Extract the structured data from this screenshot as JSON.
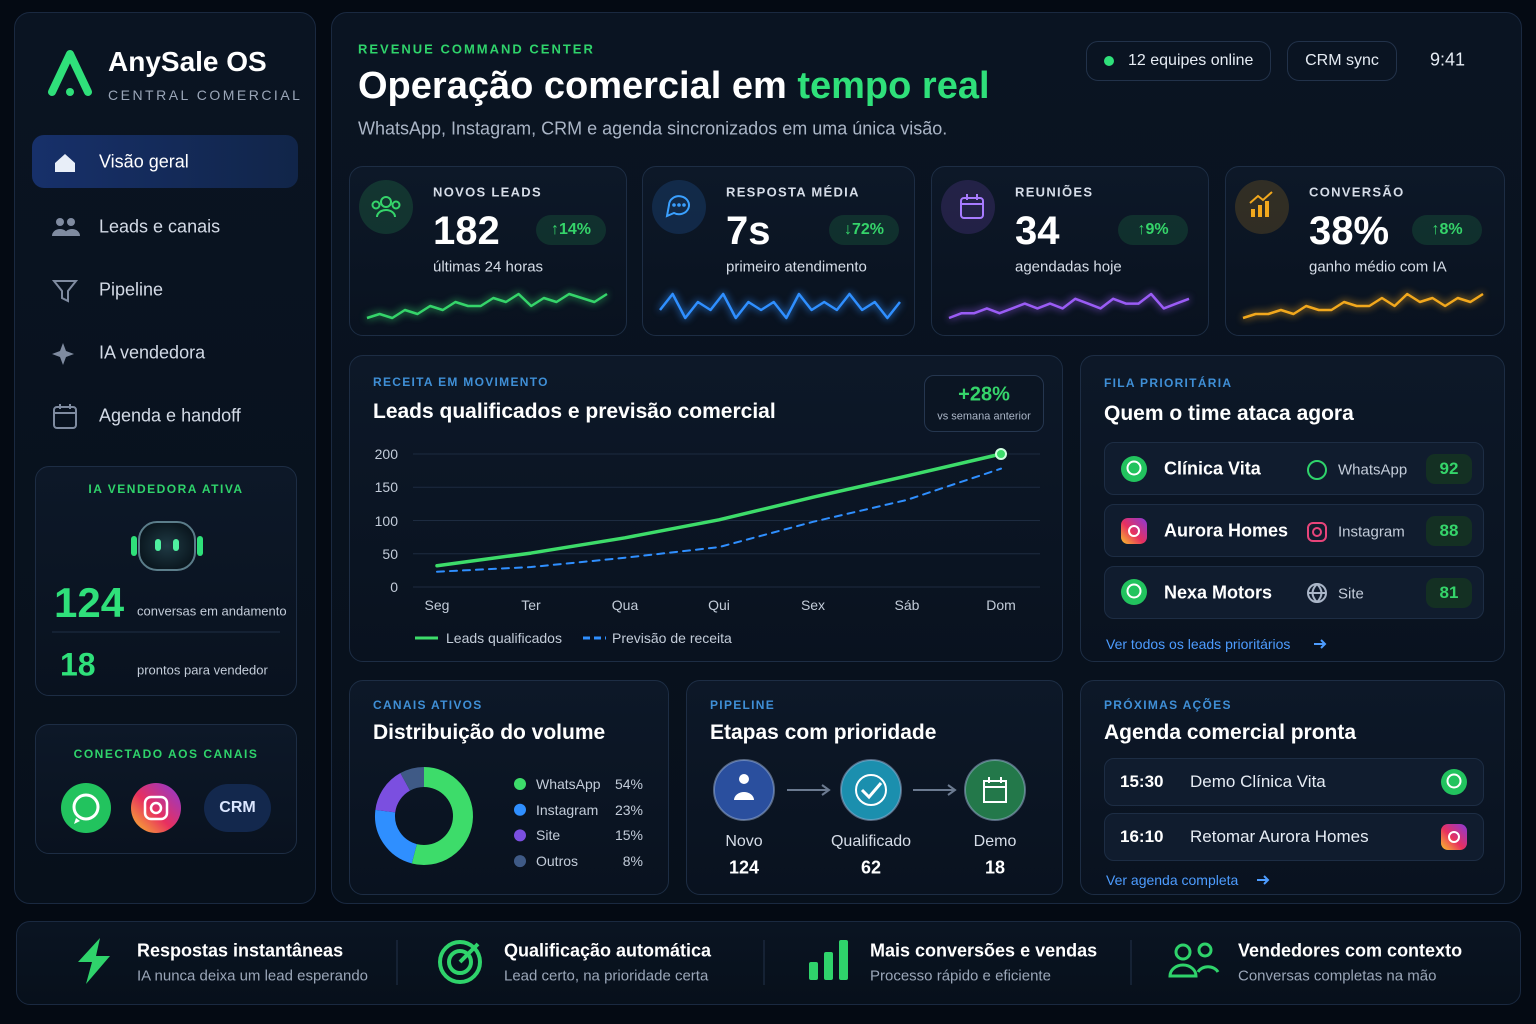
{
  "brand": {
    "name": "AnySale OS",
    "tagline": "CENTRAL COMERCIAL"
  },
  "nav": [
    {
      "label": "Visão geral",
      "active": true
    },
    {
      "label": "Leads e canais"
    },
    {
      "label": "Pipeline"
    },
    {
      "label": "IA vendedora"
    },
    {
      "label": "Agenda e handoff"
    }
  ],
  "ai_card": {
    "title": "IA VENDEDORA ATIVA",
    "stats": [
      {
        "value": 124,
        "label": "conversas em andamento"
      },
      {
        "value": 18,
        "label": "prontos para vendedor"
      }
    ]
  },
  "channels_card": {
    "title": "CONECTADO AOS CANAIS",
    "crm": "CRM"
  },
  "header": {
    "eyebrow": "REVENUE COMMAND CENTER",
    "title": "Operação comercial em",
    "title_highlight": "tempo real",
    "subtitle": "WhatsApp, Instagram, CRM e agenda sincronizados em uma única visão.",
    "status": "12 equipes online",
    "sync": "CRM sync",
    "time": "9:41"
  },
  "kpis": [
    {
      "label": "NOVOS LEADS",
      "value": "182",
      "change": "↑14%",
      "note": "últimas 24 horas",
      "color": "#35d46a",
      "trend": [
        3,
        4,
        3,
        5,
        4,
        6,
        5,
        7,
        6,
        6,
        8,
        7,
        9,
        6,
        8,
        7,
        9,
        8,
        7,
        9
      ]
    },
    {
      "label": "RESPOSTA MÉDIA",
      "value": "7s",
      "change": "↓72%",
      "note": "primeiro atendimento",
      "color": "#2f8fff",
      "trend": [
        6,
        8,
        5,
        7,
        6,
        8,
        5,
        7,
        6,
        7,
        5,
        8,
        6,
        7,
        6,
        8,
        6,
        7,
        5,
        7
      ]
    },
    {
      "label": "REUNIÕES",
      "value": "34",
      "change": "↑9%",
      "note": "agendadas hoje",
      "color": "#9a5cf5",
      "trend": [
        3,
        4,
        4,
        5,
        4,
        5,
        6,
        5,
        6,
        5,
        7,
        6,
        5,
        7,
        6,
        6,
        8,
        5,
        6,
        7
      ]
    },
    {
      "label": "CONVERSÃO",
      "value": "38%",
      "change": "↑8%",
      "note": "ganho médio com IA",
      "color": "#f2a81d",
      "trend": [
        2,
        3,
        3,
        4,
        3,
        5,
        4,
        4,
        6,
        5,
        5,
        7,
        5,
        8,
        6,
        7,
        5,
        7,
        6,
        8
      ]
    }
  ],
  "revenue_chart": {
    "type": "line",
    "eyebrow": "RECEITA EM MOVIMENTO",
    "title": "Leads qualificados e previsão comercial",
    "badge": "+28%",
    "badge_note": "vs semana anterior",
    "categories": [
      "Seg",
      "Ter",
      "Qua",
      "Qui",
      "Sex",
      "Sáb",
      "Dom"
    ],
    "ylim": [
      0,
      200
    ],
    "yticks": [
      0,
      50,
      100,
      150,
      200
    ],
    "grid": true,
    "series": [
      {
        "name": "Leads qualificados",
        "color": "#3ddc6a",
        "values": [
          32,
          51,
          74,
          101,
          135,
          167,
          200
        ]
      },
      {
        "name": "Previsão de receita",
        "color": "#2f8fff",
        "dashed": true,
        "values": [
          23,
          30,
          44,
          60,
          98,
          131,
          178
        ]
      }
    ]
  },
  "priority_queue": {
    "eyebrow": "FILA PRIORITÁRIA",
    "title": "Quem o time ataca agora",
    "items": [
      {
        "name": "Clínica Vita",
        "channel": "WhatsApp",
        "score": 92
      },
      {
        "name": "Aurora Homes",
        "channel": "Instagram",
        "score": 88
      },
      {
        "name": "Nexa Motors",
        "channel": "Site",
        "score": 81
      }
    ],
    "link": "Ver todos os leads prioritários"
  },
  "channel_mix": {
    "type": "pie",
    "eyebrow": "CANAIS ATIVOS",
    "title": "Distribuição do volume",
    "categories": [
      "WhatsApp",
      "Instagram",
      "Site",
      "Outros"
    ],
    "values": [
      54,
      23,
      15,
      8
    ],
    "value_labels": [
      "54%",
      "23%",
      "15%",
      "8%"
    ],
    "colors": [
      "#3ddc6a",
      "#2f8fff",
      "#7b4fe0",
      "#3f5a86"
    ]
  },
  "pipeline": {
    "eyebrow": "PIPELINE",
    "title": "Etapas com prioridade",
    "stages": [
      {
        "label": "Novo",
        "value": 124,
        "color": "#2a4f9e"
      },
      {
        "label": "Qualificado",
        "value": 62,
        "color": "#1b8fae"
      },
      {
        "label": "Demo",
        "value": 18,
        "color": "#23784a"
      }
    ]
  },
  "agenda": {
    "eyebrow": "PRÓXIMAS AÇÕES",
    "title": "Agenda comercial pronta",
    "items": [
      {
        "time": "15:30",
        "label": "Demo Clínica Vita"
      },
      {
        "time": "16:10",
        "label": "Retomar Aurora Homes"
      }
    ],
    "link": "Ver agenda completa"
  },
  "features": [
    {
      "title": "Respostas instantâneas",
      "subtitle": "IA nunca deixa um lead esperando"
    },
    {
      "title": "Qualificação automática",
      "subtitle": "Lead certo, na prioridade certa"
    },
    {
      "title": "Mais conversões e vendas",
      "subtitle": "Processo rápido e eficiente"
    },
    {
      "title": "Vendedores com contexto",
      "subtitle": "Conversas completas na mão"
    }
  ]
}
